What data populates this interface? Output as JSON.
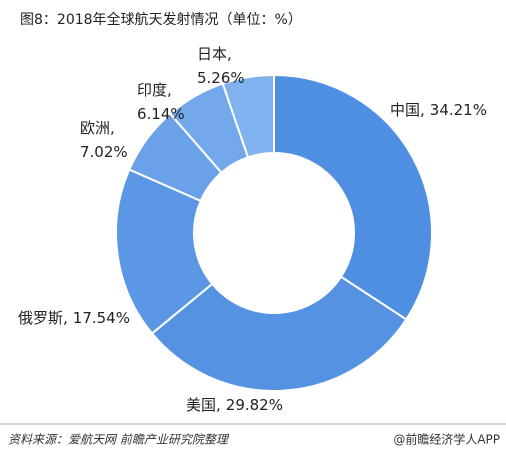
{
  "chart_data": {
    "type": "donut",
    "title": "图8：2018年全球航天发射情况（单位：%）",
    "categories": [
      "中国,",
      "美国,",
      "俄罗斯,",
      "欧洲,",
      "印度,",
      "日本,"
    ],
    "values": [
      34.21,
      29.82,
      17.54,
      7.02,
      6.14,
      5.26
    ],
    "value_labels": [
      "34.21%",
      "29.82%",
      "17.54%",
      "7.02%",
      "6.14%",
      "5.26%"
    ],
    "colors": [
      "#4e8fe2",
      "#5592e2",
      "#5b97e4",
      "#6aa1e8",
      "#73a8ea",
      "#80b2f0"
    ],
    "source": "资料来源：爱航天网 前瞻产业研究院整理",
    "footer": "@前瞻经济学人APP"
  }
}
